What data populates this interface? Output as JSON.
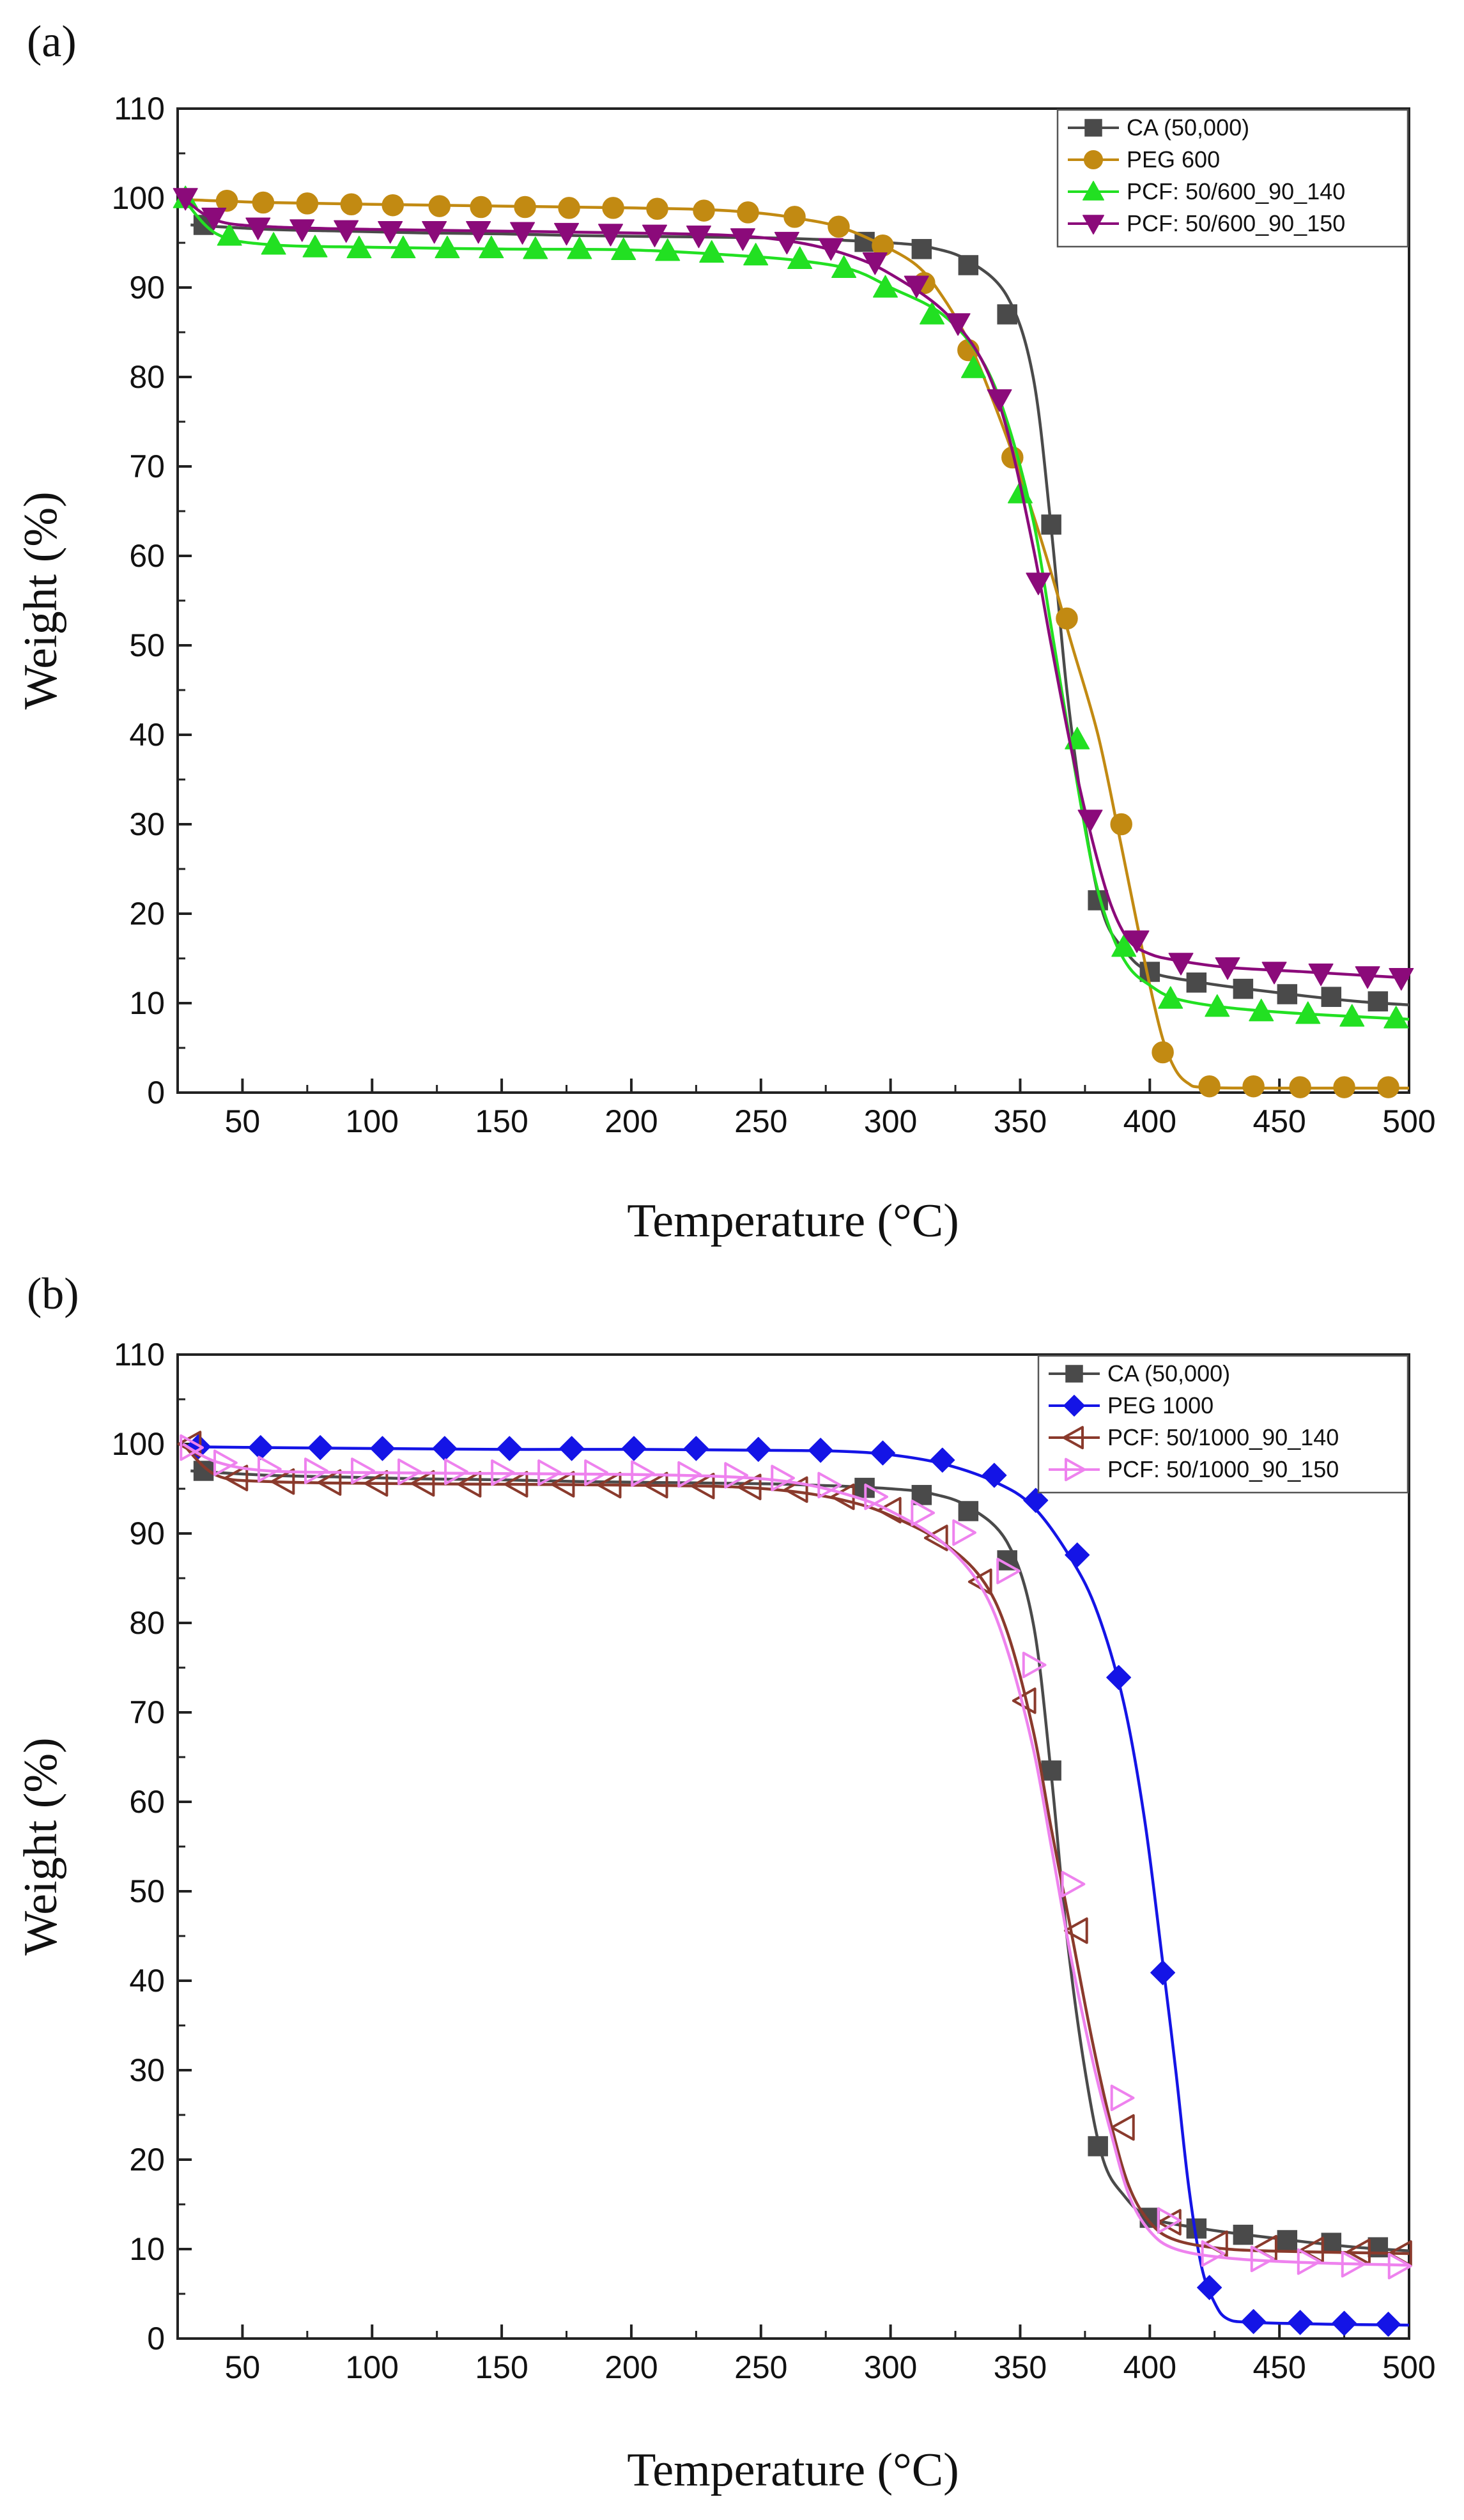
{
  "chart_data": [
    {
      "panel_label": "(a)",
      "type": "line",
      "xlabel": "Temperature (°C)",
      "ylabel": "Weight (%)",
      "xlim": [
        25,
        500
      ],
      "ylim": [
        0,
        110
      ],
      "xticks": [
        50,
        100,
        150,
        200,
        250,
        300,
        350,
        400,
        450,
        500
      ],
      "yticks": [
        0,
        10,
        20,
        30,
        40,
        50,
        60,
        70,
        80,
        90,
        100,
        110
      ],
      "legend_position": "top-right",
      "series": [
        {
          "name": "CA (50,000)",
          "color": "#4a4a4a",
          "marker": "square",
          "x": [
            30,
            60,
            90,
            120,
            150,
            180,
            210,
            240,
            260,
            280,
            300,
            315,
            330,
            345,
            355,
            362,
            368,
            375,
            382,
            390,
            400,
            420,
            440,
            460,
            480,
            500
          ],
          "y": [
            97,
            96.5,
            96.3,
            96.1,
            96,
            95.8,
            95.7,
            95.6,
            95.5,
            95.3,
            95,
            94.5,
            93,
            89,
            80,
            63,
            45,
            30,
            20,
            16,
            13.5,
            12.3,
            11.5,
            10.8,
            10.2,
            9.8
          ],
          "markers_x": [
            35,
            290,
            312,
            330,
            345,
            362,
            380,
            400,
            418,
            436,
            453,
            470,
            488
          ],
          "markers_y": [
            97,
            95.1,
            94.3,
            92.5,
            87,
            63.5,
            21.5,
            13.5,
            12.3,
            11.6,
            11,
            10.7,
            10.2
          ]
        },
        {
          "name": "PEG 600",
          "color": "#c28a12",
          "marker": "circle",
          "x": [
            30,
            60,
            100,
            150,
            200,
            230,
            250,
            265,
            280,
            295,
            310,
            320,
            330,
            340,
            350,
            360,
            370,
            380,
            388,
            395,
            400,
            405,
            410,
            415,
            420,
            440,
            470,
            500
          ],
          "y": [
            99.8,
            99.5,
            99.3,
            99.1,
            98.9,
            98.7,
            98.3,
            97.7,
            96.8,
            95,
            92.5,
            89,
            84,
            77,
            69,
            60,
            50,
            40,
            29,
            19,
            12,
            6,
            2.5,
            1,
            0.6,
            0.5,
            0.5,
            0.5
          ],
          "markers_x": [
            44,
            58,
            75,
            92,
            108,
            126,
            142,
            159,
            176,
            193,
            210,
            228,
            245,
            263,
            280,
            297,
            313,
            330,
            347,
            368,
            389,
            405,
            423,
            440,
            458,
            475,
            492
          ],
          "markers_y": [
            99.7,
            99.5,
            99.4,
            99.3,
            99.2,
            99.1,
            99.0,
            99.0,
            98.9,
            98.9,
            98.8,
            98.6,
            98.4,
            97.9,
            96.8,
            94.7,
            90.5,
            83,
            71,
            53,
            30,
            4.5,
            0.7,
            0.7,
            0.6,
            0.6,
            0.6
          ]
        },
        {
          "name": "PCF: 50/600_90_140",
          "color": "#22e022",
          "marker": "triangle-up",
          "x": [
            27,
            40,
            60,
            100,
            150,
            200,
            240,
            265,
            285,
            300,
            320,
            335,
            345,
            355,
            362,
            370,
            378,
            385,
            392,
            400,
            410,
            430,
            460,
            500
          ],
          "y": [
            100,
            96,
            94.8,
            94.5,
            94.3,
            94.2,
            93.6,
            93,
            92,
            90,
            87,
            82,
            75,
            64,
            52,
            38,
            25,
            18,
            14,
            12,
            10.5,
            9.5,
            8.8,
            8.2
          ],
          "markers_x": [
            28,
            45,
            62,
            78,
            95,
            112,
            129,
            146,
            163,
            180,
            197,
            214,
            231,
            248,
            265,
            282,
            298,
            316,
            332,
            350,
            372,
            390,
            408,
            426,
            443,
            461,
            478,
            495
          ],
          "markers_y": [
            100,
            95.8,
            94.8,
            94.5,
            94.4,
            94.4,
            94.4,
            94.4,
            94.3,
            94.3,
            94.2,
            94.1,
            93.9,
            93.6,
            93.2,
            92.2,
            90,
            87,
            81,
            67,
            39.5,
            16.3,
            10.5,
            9.6,
            9.1,
            8.8,
            8.5,
            8.3
          ]
        },
        {
          "name": "PCF: 50/600_90_150",
          "color": "#8b0a7a",
          "marker": "triangle-down",
          "x": [
            27,
            40,
            60,
            100,
            150,
            200,
            240,
            265,
            285,
            300,
            320,
            335,
            345,
            355,
            362,
            370,
            378,
            385,
            392,
            400,
            410,
            430,
            460,
            500
          ],
          "y": [
            100,
            97.5,
            96.8,
            96.5,
            96.3,
            96.1,
            95.8,
            95,
            93.5,
            91.5,
            87.5,
            82,
            74,
            61,
            50,
            38,
            28,
            21,
            17,
            15.5,
            14.8,
            14,
            13.5,
            12.8
          ],
          "markers_x": [
            28,
            39,
            56,
            73,
            90,
            107,
            124,
            141,
            158,
            175,
            192,
            209,
            226,
            243,
            260,
            277,
            294,
            310,
            326,
            342,
            357,
            377,
            395,
            412,
            430,
            448,
            466,
            484,
            497
          ],
          "markers_y": [
            100,
            97.8,
            96.7,
            96.5,
            96.4,
            96.3,
            96.3,
            96.3,
            96.2,
            96.1,
            96.0,
            95.9,
            95.8,
            95.5,
            95.1,
            94.4,
            92.8,
            90.2,
            86,
            77.5,
            57,
            30.5,
            17,
            14.5,
            14,
            13.5,
            13.3,
            13.0,
            12.8
          ]
        }
      ]
    },
    {
      "panel_label": "(b)",
      "type": "line",
      "xlabel": "Temperature (°C)",
      "ylabel": "Weight (%)",
      "xlim": [
        25,
        500
      ],
      "ylim": [
        0,
        110
      ],
      "xticks": [
        50,
        100,
        150,
        200,
        250,
        300,
        350,
        400,
        450,
        500
      ],
      "yticks": [
        0,
        10,
        20,
        30,
        40,
        50,
        60,
        70,
        80,
        90,
        100,
        110
      ],
      "legend_position": "top-right",
      "series": [
        {
          "name": "CA (50,000)",
          "color": "#4a4a4a",
          "marker": "square",
          "x": [
            30,
            60,
            90,
            120,
            150,
            180,
            210,
            240,
            260,
            280,
            300,
            315,
            330,
            345,
            355,
            362,
            368,
            375,
            382,
            390,
            400,
            420,
            440,
            460,
            480,
            500
          ],
          "y": [
            97,
            96.5,
            96.3,
            96.1,
            96,
            95.8,
            95.7,
            95.6,
            95.5,
            95.3,
            95,
            94.5,
            93,
            89,
            80,
            63,
            45,
            30,
            20,
            16,
            13.5,
            12.3,
            11.5,
            10.8,
            10.2,
            9.8
          ],
          "markers_x": [
            35,
            290,
            312,
            330,
            345,
            362,
            380,
            400,
            418,
            436,
            453,
            470,
            488
          ],
          "markers_y": [
            97,
            95.1,
            94.3,
            92.5,
            87,
            63.5,
            21.5,
            13.5,
            12.3,
            11.6,
            11,
            10.7,
            10.2
          ]
        },
        {
          "name": "PEG 1000",
          "color": "#1414e6",
          "marker": "diamond",
          "x": [
            28,
            60,
            100,
            150,
            200,
            250,
            280,
            300,
            320,
            340,
            355,
            370,
            380,
            390,
            398,
            405,
            410,
            415,
            420,
            425,
            430,
            440,
            470,
            500
          ],
          "y": [
            99.7,
            99.6,
            99.5,
            99.4,
            99.4,
            99.3,
            99.2,
            98.8,
            97.8,
            95.8,
            93,
            87,
            81,
            71,
            58,
            42,
            30,
            17,
            8,
            4,
            2.2,
            1.8,
            1.6,
            1.5
          ],
          "markers_x": [
            33,
            57,
            80,
            104,
            128,
            153,
            177,
            201,
            225,
            249,
            273,
            297,
            320,
            340,
            356,
            372,
            388,
            405,
            423,
            440,
            458,
            475,
            492
          ],
          "markers_y": [
            99.7,
            99.6,
            99.6,
            99.5,
            99.5,
            99.5,
            99.5,
            99.5,
            99.5,
            99.4,
            99.3,
            99.0,
            98.2,
            96.5,
            93.7,
            87.6,
            73.9,
            40.9,
            5.7,
            1.9,
            1.8,
            1.7,
            1.6
          ]
        },
        {
          "name": "PCF: 50/1000_90_140",
          "color": "#8a3a2c",
          "marker": "triangle-left",
          "x": [
            27,
            40,
            60,
            100,
            150,
            200,
            240,
            265,
            285,
            300,
            320,
            335,
            345,
            355,
            362,
            370,
            378,
            385,
            392,
            400,
            410,
            430,
            460,
            500
          ],
          "y": [
            100,
            96.5,
            95.8,
            95.6,
            95.5,
            95.4,
            95.2,
            94.6,
            93.5,
            92,
            89,
            85,
            79,
            68,
            57,
            45,
            33,
            24,
            17,
            13,
            11,
            10,
            9.7,
            9.5
          ],
          "markers_x": [
            30,
            48,
            66,
            84,
            102,
            120,
            138,
            156,
            174,
            192,
            210,
            228,
            246,
            264,
            282,
            300,
            318,
            335,
            352,
            372,
            390,
            408,
            426,
            445,
            463,
            481,
            497
          ],
          "markers_y": [
            100,
            96.2,
            95.8,
            95.7,
            95.6,
            95.6,
            95.5,
            95.5,
            95.5,
            95.4,
            95.4,
            95.3,
            95.2,
            94.9,
            94.1,
            92.6,
            89.5,
            84.6,
            71.3,
            45.6,
            23.6,
            13.0,
            10.6,
            10.1,
            9.9,
            9.7,
            9.5
          ]
        },
        {
          "name": "PCF: 50/1000_90_150",
          "color": "#ee82ee",
          "marker": "triangle-right",
          "x": [
            27,
            40,
            60,
            100,
            150,
            200,
            240,
            265,
            285,
            300,
            320,
            335,
            345,
            355,
            362,
            370,
            378,
            385,
            392,
            400,
            410,
            430,
            460,
            500
          ],
          "y": [
            100,
            98,
            97,
            96.8,
            96.7,
            96.6,
            96.3,
            95.6,
            94.2,
            92.5,
            89,
            84,
            77,
            66,
            55,
            42,
            31,
            23,
            16,
            12,
            10,
            9,
            8.5,
            8.2
          ],
          "markers_x": [
            30,
            43,
            60,
            78,
            96,
            114,
            132,
            150,
            168,
            186,
            204,
            222,
            240,
            258,
            276,
            294,
            312,
            328,
            345,
            355,
            370,
            389,
            407,
            424,
            443,
            461,
            478,
            496
          ],
          "markers_y": [
            99.6,
            97.9,
            97.2,
            97.0,
            97.0,
            96.9,
            96.9,
            96.8,
            96.8,
            96.8,
            96.7,
            96.6,
            96.5,
            96.2,
            95.4,
            94.1,
            92.3,
            90.1,
            85.8,
            75.3,
            50.8,
            26.9,
            13.2,
            9.5,
            8.9,
            8.6,
            8.3,
            8.1
          ]
        }
      ]
    }
  ]
}
